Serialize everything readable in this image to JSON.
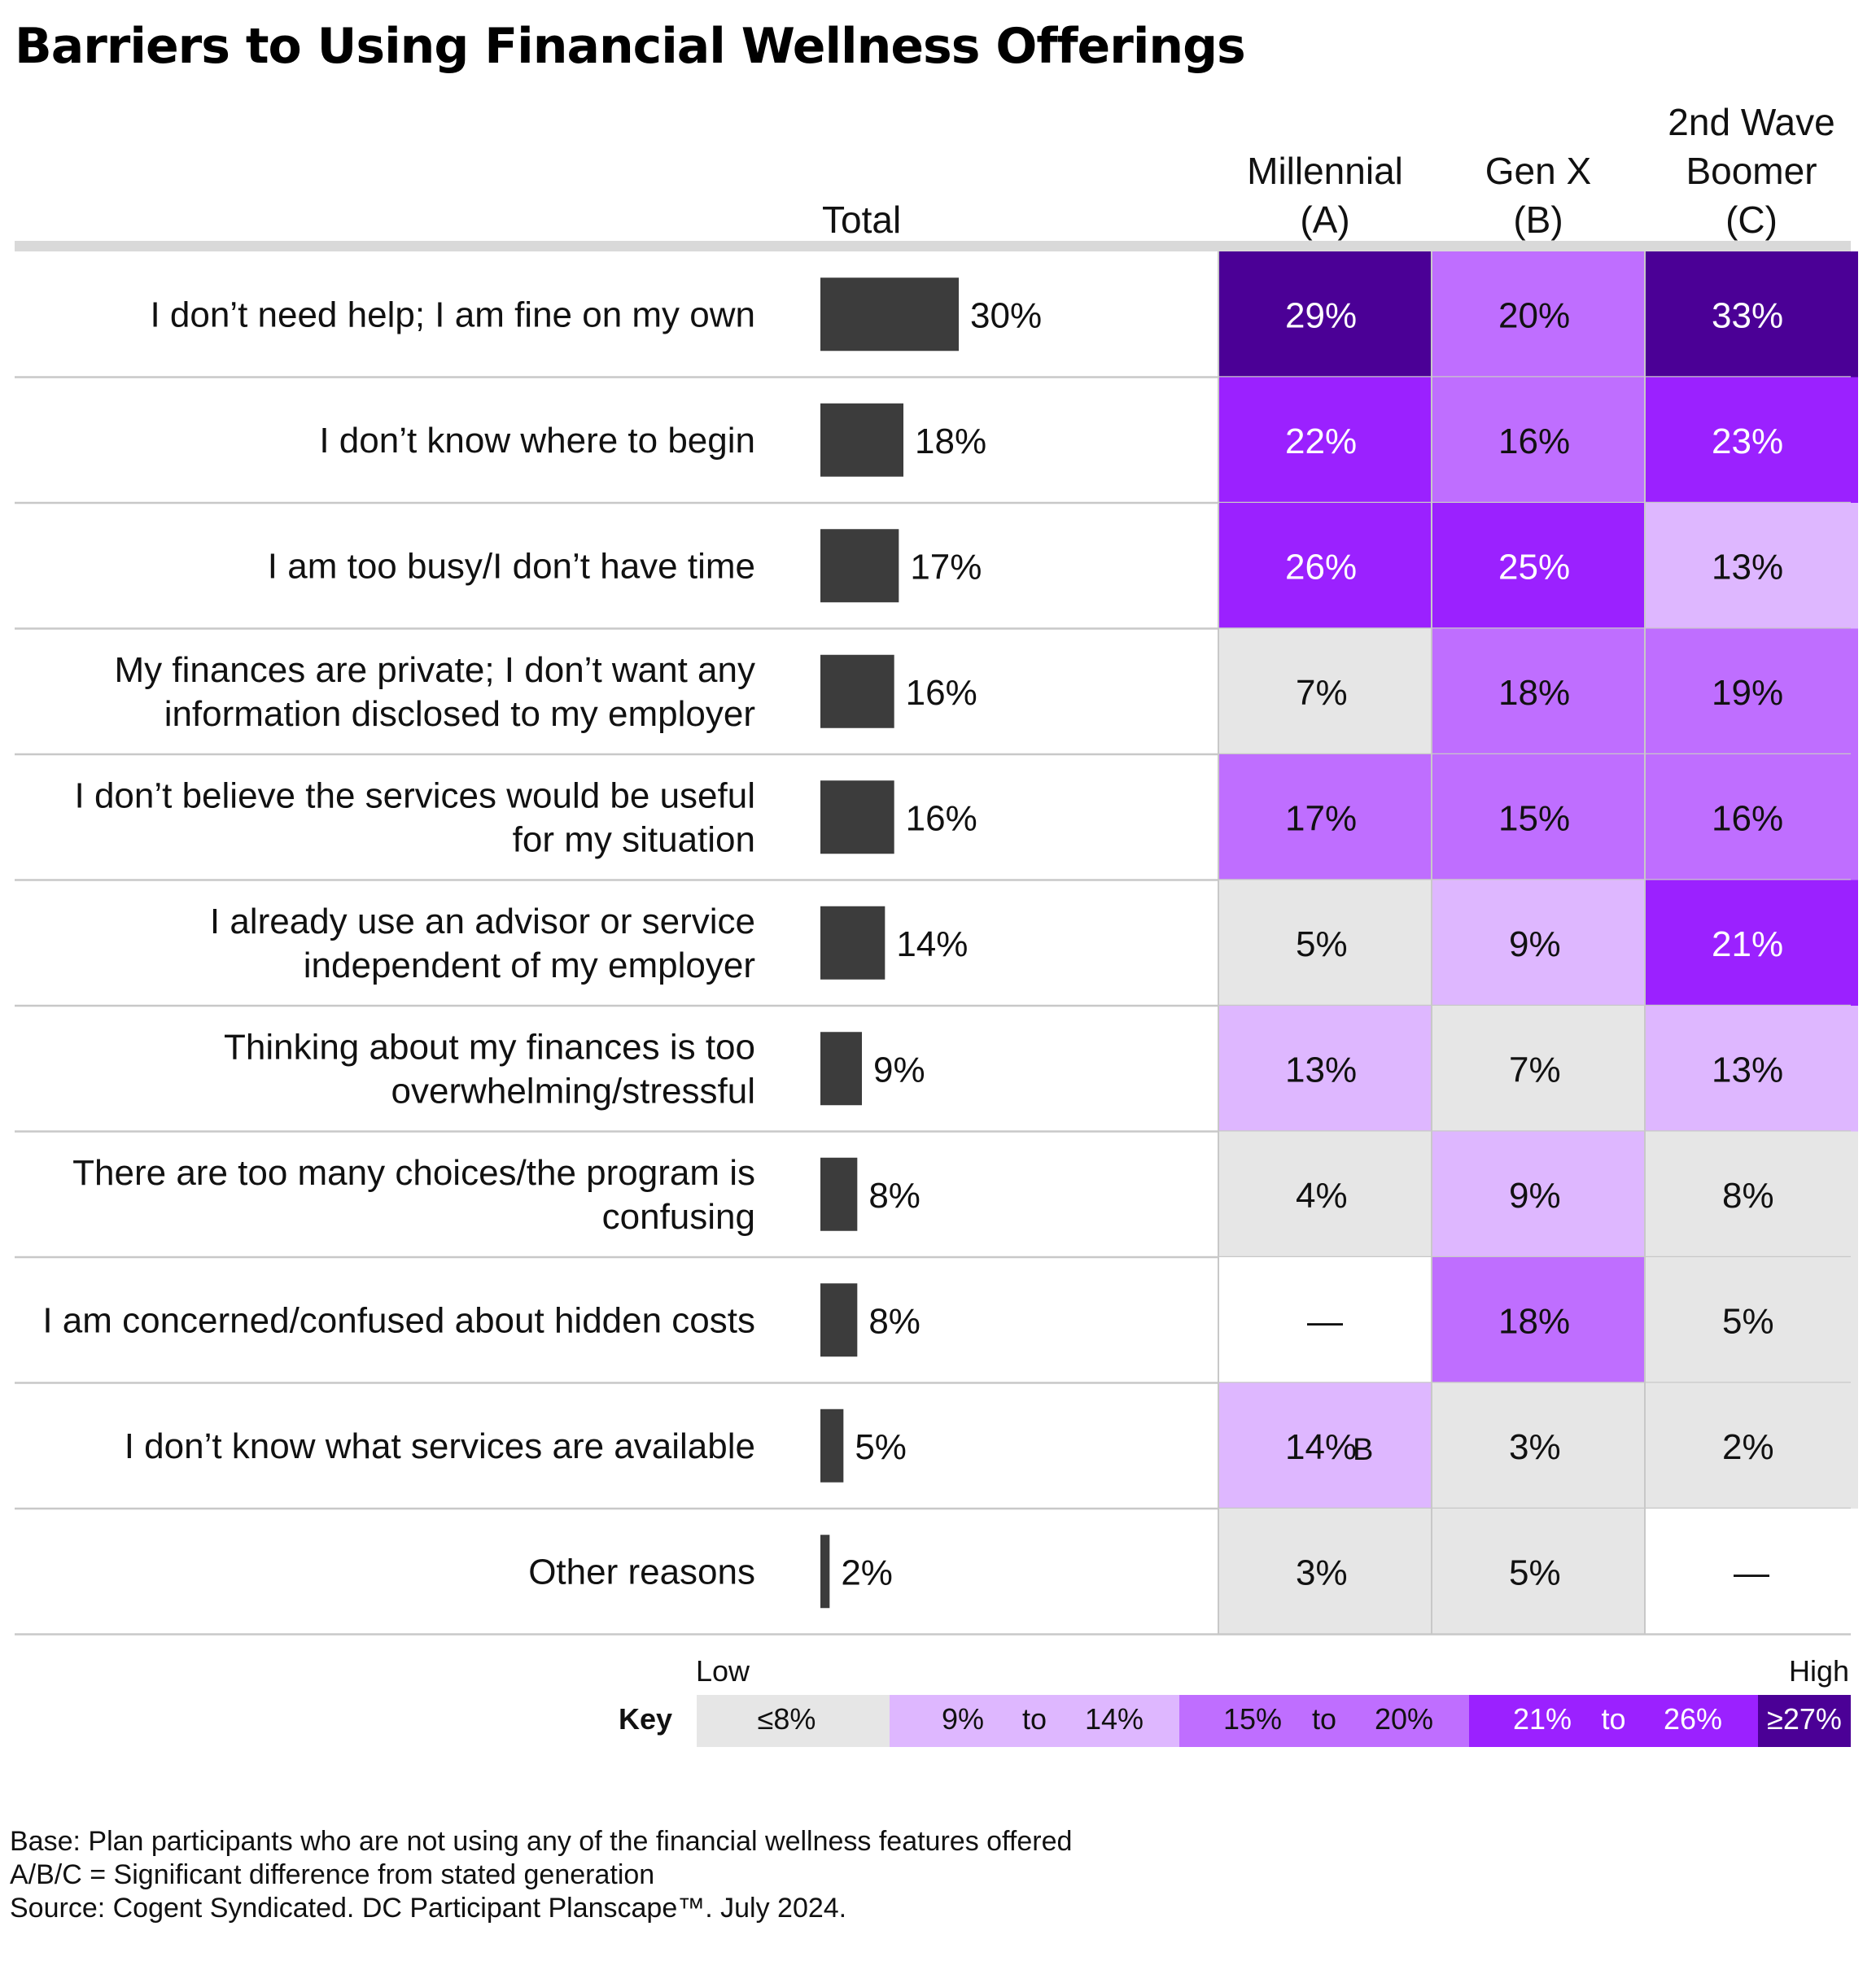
{
  "title": "Barriers to Using Financial Wellness Offerings",
  "chart_data": {
    "type": "bar",
    "title": "Barriers to Using Financial Wellness Offerings",
    "total_header": "Total",
    "categories": [
      [
        "I don’t need help; I am fine on my own"
      ],
      [
        "I don’t know where to begin"
      ],
      [
        "I am too busy/I don’t have time"
      ],
      [
        "My finances are private; I don’t want any",
        "information disclosed to my employer"
      ],
      [
        "I don’t believe the services would be useful",
        "for my situation"
      ],
      [
        "I already use an advisor or service",
        "independent of my employer"
      ],
      [
        "Thinking about my finances is too",
        "overwhelming/stressful"
      ],
      [
        "There are too many choices/the program is",
        "confusing"
      ],
      [
        "I am concerned/confused about hidden costs"
      ],
      [
        "I don’t know what services are available"
      ],
      [
        "Other reasons"
      ]
    ],
    "total_values": [
      30,
      18,
      17,
      16,
      16,
      14,
      9,
      8,
      8,
      5,
      2
    ],
    "total_labels": [
      "30%",
      "18%",
      "17%",
      "16%",
      "16%",
      "14%",
      "9%",
      "8%",
      "8%",
      "5%",
      "2%"
    ],
    "xlim": [
      0,
      30
    ],
    "generations": [
      {
        "header": [
          "Millennial",
          "(A)"
        ],
        "values": [
          29,
          22,
          26,
          7,
          17,
          5,
          13,
          4,
          null,
          14,
          3
        ],
        "labels": [
          "29%",
          "22%",
          "26%",
          "7%",
          "17%",
          "5%",
          "13%",
          "4%",
          "—",
          "14%",
          "3%"
        ],
        "sig": [
          "",
          "",
          "",
          "",
          "",
          "",
          "",
          "",
          "",
          "B",
          ""
        ]
      },
      {
        "header": [
          "Gen X",
          "(B)"
        ],
        "values": [
          20,
          16,
          25,
          18,
          15,
          9,
          7,
          9,
          18,
          3,
          5
        ],
        "labels": [
          "20%",
          "16%",
          "25%",
          "18%",
          "15%",
          "9%",
          "7%",
          "9%",
          "18%",
          "3%",
          "5%"
        ],
        "sig": [
          "",
          "",
          "",
          "",
          "",
          "",
          "",
          "",
          "",
          "",
          ""
        ]
      },
      {
        "header": [
          "2nd Wave",
          "Boomer",
          "(C)"
        ],
        "values": [
          33,
          23,
          13,
          19,
          16,
          21,
          13,
          8,
          5,
          2,
          null
        ],
        "labels": [
          "33%",
          "23%",
          "13%",
          "19%",
          "16%",
          "21%",
          "13%",
          "8%",
          "5%",
          "2%",
          "—"
        ],
        "sig": [
          "",
          "",
          "",
          "",
          "",
          "",
          "",
          "",
          "",
          "",
          ""
        ]
      }
    ],
    "key": {
      "label": "Key",
      "low": "Low",
      "high": "High",
      "to": "to",
      "bins": [
        {
          "from": "≤8%",
          "to": "",
          "max": 8,
          "color": "#e6e6e6",
          "text_color": "#111111"
        },
        {
          "from": "9%",
          "to": "14%",
          "max": 14,
          "color": "#deb7ff",
          "text_color": "#111111"
        },
        {
          "from": "15%",
          "to": "20%",
          "max": 20,
          "color": "#bf6eff",
          "text_color": "#111111"
        },
        {
          "from": "21%",
          "to": "26%",
          "max": 26,
          "color": "#9b21ff",
          "text_color": "#ffffff"
        },
        {
          "from": "≥27%",
          "to": "",
          "max": 1000,
          "color": "#4b0096",
          "text_color": "#ffffff"
        }
      ]
    },
    "bar_color": "#3c3c3c",
    "empty_cell_color": "#ffffff"
  },
  "footnotes": {
    "base": "Base: Plan participants who are not using any of the financial wellness features offered",
    "sig": "A/B/C = Significant difference from stated generation",
    "source": "Source: Cogent Syndicated. DC Participant Planscape™. July 2024."
  }
}
